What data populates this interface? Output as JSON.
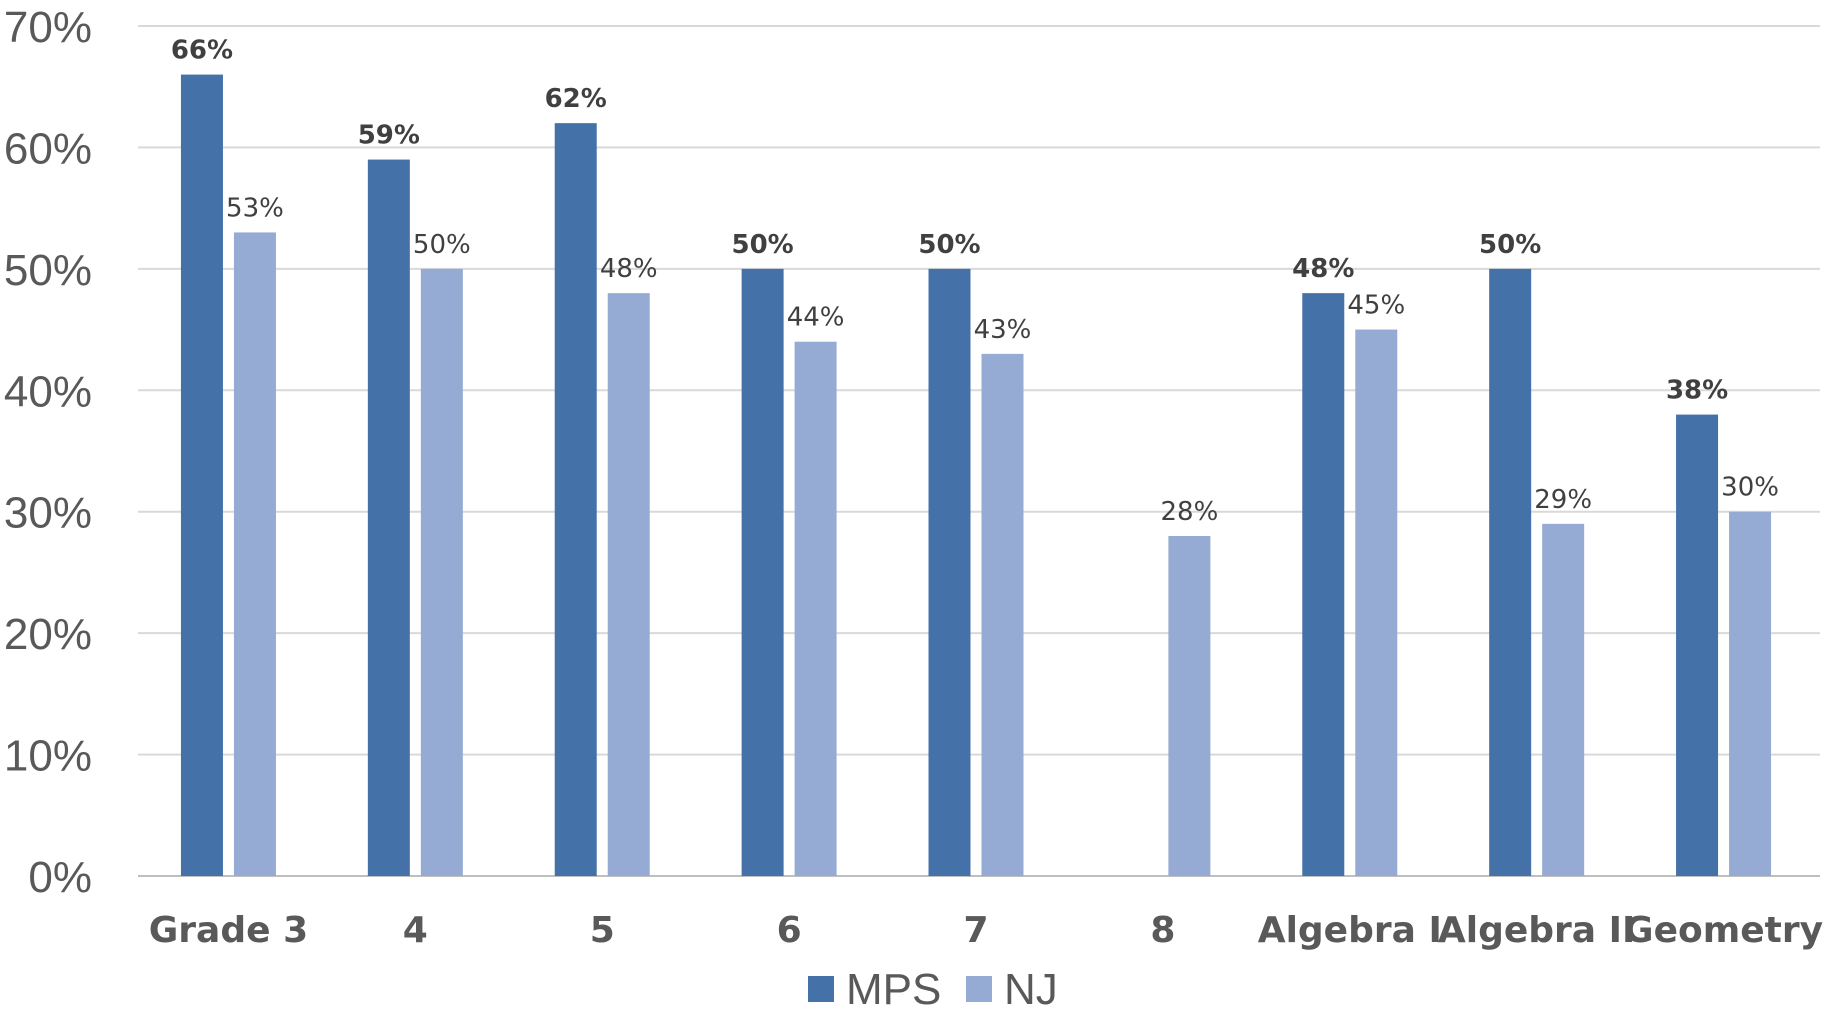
{
  "chart_data": {
    "type": "bar",
    "categories": [
      "Grade 3",
      "4",
      "5",
      "6",
      "7",
      "8",
      "Algebra I",
      "Algebra II",
      "Geometry"
    ],
    "series": [
      {
        "name": "MPS",
        "values": [
          66,
          59,
          62,
          50,
          50,
          null,
          48,
          50,
          38
        ],
        "labels": [
          "66%",
          "59%",
          "62%",
          "50%",
          "50%",
          "",
          "48%",
          "50%",
          "38%"
        ]
      },
      {
        "name": "NJ",
        "values": [
          53,
          50,
          48,
          44,
          43,
          28,
          45,
          29,
          30
        ],
        "labels": [
          "53%",
          "50%",
          "48%",
          "44%",
          "43%",
          "28%",
          "45%",
          "29%",
          "30%"
        ]
      }
    ],
    "ylim": [
      0,
      70
    ],
    "yticks": [
      "0%",
      "10%",
      "20%",
      "30%",
      "40%",
      "50%",
      "60%",
      "70%"
    ],
    "grid": true,
    "legend_position": "bottom",
    "colors": {
      "MPS": "#4472a8",
      "NJ": "#95abd3"
    }
  }
}
